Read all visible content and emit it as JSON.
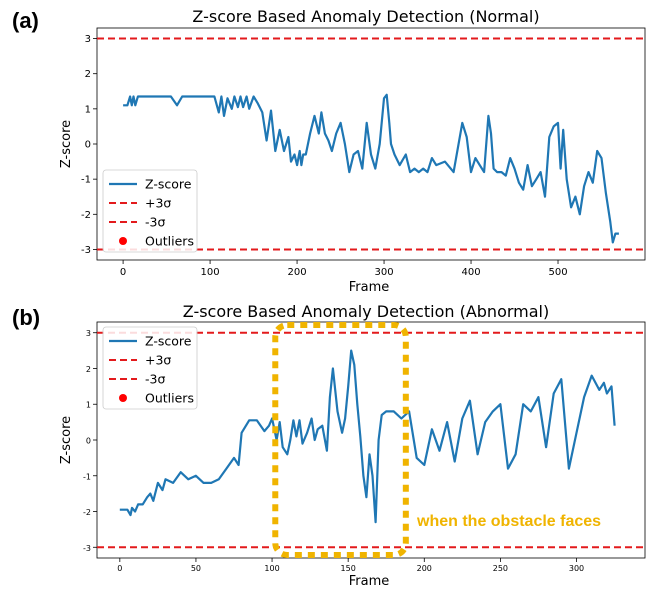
{
  "panels": {
    "a_label": "(a)",
    "b_label": "(b)"
  },
  "colors": {
    "series": "#1f77b4",
    "threshold": "#e31a1c",
    "outlier": "#ff0000",
    "highlight": "#f0b400"
  },
  "chart_data": [
    {
      "type": "line",
      "title": "Z-score Based Anomaly Detection (Normal)",
      "xlabel": "Frame",
      "ylabel": "Z-score",
      "xlim": [
        -30,
        600
      ],
      "ylim": [
        -3.3,
        3.3
      ],
      "xticks": [
        0,
        100,
        200,
        300,
        400,
        500
      ],
      "yticks": [
        -3,
        -2,
        -1,
        0,
        1,
        2,
        3
      ],
      "thresholds": [
        3,
        -3
      ],
      "legend": {
        "position": "lower-left",
        "entries": [
          "Z-score",
          "+3σ",
          "-3σ",
          "Outliers"
        ]
      },
      "series": [
        {
          "name": "Z-score",
          "x": [
            0,
            5,
            8,
            10,
            12,
            14,
            17,
            20,
            25,
            40,
            55,
            62,
            68,
            75,
            90,
            105,
            110,
            113,
            116,
            120,
            125,
            128,
            132,
            135,
            138,
            142,
            145,
            150,
            155,
            160,
            165,
            170,
            175,
            180,
            185,
            190,
            193,
            197,
            200,
            203,
            205,
            207,
            210,
            215,
            220,
            225,
            228,
            232,
            236,
            240,
            245,
            250,
            255,
            260,
            265,
            270,
            275,
            280,
            285,
            290,
            295,
            300,
            303,
            306,
            308,
            312,
            318,
            325,
            330,
            335,
            340,
            345,
            350,
            355,
            360,
            370,
            380,
            390,
            395,
            400,
            405,
            410,
            415,
            420,
            423,
            426,
            430,
            435,
            440,
            445,
            450,
            455,
            460,
            465,
            470,
            475,
            480,
            485,
            490,
            495,
            500,
            503,
            506,
            510,
            515,
            520,
            525,
            530,
            535,
            540,
            545,
            550,
            555,
            560,
            563,
            566,
            570
          ],
          "y": [
            1.1,
            1.1,
            1.35,
            1.1,
            1.35,
            1.1,
            1.35,
            1.35,
            1.35,
            1.35,
            1.35,
            1.1,
            1.35,
            1.35,
            1.35,
            1.35,
            0.9,
            1.35,
            0.8,
            1.3,
            1.0,
            1.35,
            1.05,
            1.35,
            1.05,
            1.35,
            1.0,
            1.35,
            1.15,
            0.9,
            0.1,
            0.95,
            -0.2,
            0.4,
            -0.2,
            0.2,
            -0.5,
            -0.3,
            -0.6,
            -0.2,
            -0.6,
            -0.3,
            -0.3,
            0.3,
            0.8,
            0.3,
            0.9,
            0.3,
            0.1,
            -0.2,
            0.3,
            0.6,
            0.0,
            -0.8,
            -0.3,
            -0.2,
            -0.7,
            0.6,
            -0.3,
            -0.7,
            0.0,
            1.3,
            1.4,
            0.6,
            0.0,
            -0.3,
            -0.6,
            -0.3,
            -0.8,
            -0.7,
            -0.8,
            -0.7,
            -0.8,
            -0.4,
            -0.6,
            -0.5,
            -0.8,
            0.6,
            0.2,
            -0.8,
            -0.4,
            -0.6,
            -0.8,
            0.8,
            0.3,
            -0.7,
            -0.8,
            -0.8,
            -0.9,
            -0.4,
            -0.7,
            -1.1,
            -1.3,
            -0.6,
            -1.2,
            -1.0,
            -0.8,
            -1.5,
            0.2,
            0.5,
            0.6,
            -0.7,
            0.4,
            -1.0,
            -1.8,
            -1.5,
            -2.0,
            -1.2,
            -0.8,
            -1.1,
            -0.2,
            -0.4,
            -1.4,
            -2.2,
            -2.8,
            -2.55,
            -2.55
          ]
        }
      ]
    },
    {
      "type": "line",
      "title": "Z-score Based Anomaly Detection (Abnormal)",
      "xlabel": "Frame",
      "ylabel": "Z-score",
      "xlim": [
        -15,
        345
      ],
      "ylim": [
        -3.3,
        3.3
      ],
      "xticks": [
        0,
        50,
        100,
        150,
        200,
        250,
        300
      ],
      "yticks": [
        -3,
        -2,
        -1,
        0,
        1,
        2,
        3
      ],
      "thresholds": [
        3,
        -3
      ],
      "legend": {
        "position": "upper-left",
        "entries": [
          "Z-score",
          "+3σ",
          "-3σ",
          "Outliers"
        ]
      },
      "highlight_region": [
        110,
        180
      ],
      "annotation": "when the obstacle faces",
      "series": [
        {
          "name": "Z-score",
          "x": [
            0,
            5,
            7,
            8,
            10,
            12,
            15,
            18,
            20,
            22,
            25,
            28,
            30,
            35,
            40,
            45,
            50,
            55,
            60,
            65,
            70,
            75,
            78,
            80,
            85,
            90,
            95,
            98,
            100,
            103,
            105,
            107,
            110,
            112,
            114,
            116,
            118,
            120,
            123,
            126,
            128,
            130,
            133,
            136,
            138,
            140,
            143,
            146,
            148,
            150,
            152,
            154,
            156,
            158,
            160,
            162,
            164,
            166,
            168,
            170,
            172,
            175,
            180,
            185,
            190,
            195,
            200,
            205,
            210,
            215,
            220,
            225,
            230,
            235,
            240,
            245,
            250,
            255,
            260,
            265,
            270,
            275,
            280,
            285,
            290,
            295,
            300,
            305,
            310,
            315,
            318,
            320,
            323,
            325
          ],
          "y": [
            -1.95,
            -1.95,
            -2.1,
            -1.9,
            -2.0,
            -1.8,
            -1.8,
            -1.6,
            -1.5,
            -1.7,
            -1.2,
            -1.4,
            -1.1,
            -1.2,
            -0.9,
            -1.1,
            -1.0,
            -1.2,
            -1.2,
            -1.1,
            -0.8,
            -0.5,
            -0.7,
            0.2,
            0.55,
            0.55,
            0.25,
            0.4,
            0.6,
            0.0,
            0.5,
            -0.2,
            -0.4,
            0.0,
            0.55,
            0.1,
            0.55,
            -0.1,
            0.2,
            0.6,
            0.0,
            0.3,
            0.4,
            -0.3,
            1.2,
            2.0,
            0.8,
            0.2,
            0.6,
            1.5,
            2.5,
            2.1,
            1.0,
            0.1,
            -1.0,
            -1.6,
            -0.4,
            -1.0,
            -2.3,
            0.0,
            0.7,
            0.8,
            0.8,
            0.6,
            0.8,
            -0.5,
            -0.7,
            0.3,
            -0.3,
            0.5,
            -0.6,
            0.6,
            1.1,
            -0.4,
            0.5,
            0.8,
            1.0,
            -0.8,
            -0.4,
            1.0,
            0.8,
            1.2,
            -0.2,
            1.3,
            1.7,
            -0.8,
            0.2,
            1.2,
            1.8,
            1.4,
            1.6,
            1.3,
            1.5,
            0.4
          ]
        }
      ]
    }
  ]
}
